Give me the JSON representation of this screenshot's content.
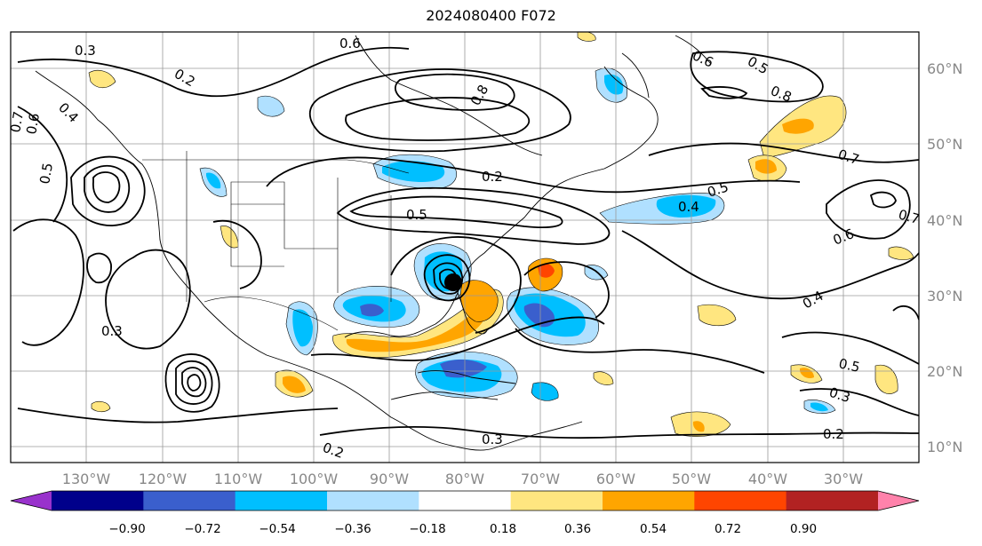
{
  "title": "2024080400 F072",
  "map": {
    "lon_labels": [
      "130°W",
      "120°W",
      "110°W",
      "100°W",
      "90°W",
      "80°W",
      "70°W",
      "60°W",
      "50°W",
      "40°W",
      "30°W"
    ],
    "lat_labels": [
      "60°N",
      "50°N",
      "40°N",
      "30°N",
      "20°N",
      "10°N"
    ],
    "contour_labels": [
      "0.3",
      "0.2",
      "0.6",
      "0.8",
      "0.6",
      "0.7",
      "0.5",
      "0.8",
      "0.2",
      "0.5",
      "0.4",
      "0.6",
      "0.7",
      "0.5",
      "0.4",
      "0.3",
      "0.5",
      "0.3",
      "0.2",
      "0.3",
      "0.2",
      "0.7",
      "0.6",
      "0.5",
      "0.4"
    ]
  },
  "colorbar": {
    "ticks": [
      "−0.90",
      "−0.72",
      "−0.54",
      "−0.36",
      "−0.18",
      "0.18",
      "0.36",
      "0.54",
      "0.72",
      "0.90"
    ],
    "colors": [
      "#9932cc",
      "#00008b",
      "#3a5fcd",
      "#00bfff",
      "#b0e0ff",
      "#ffffff",
      "#ffe680",
      "#ffa500",
      "#ff4500",
      "#b22222",
      "#ff82ab"
    ]
  },
  "colors": {
    "light_blue": "#b0e0ff",
    "blue": "#00bfff",
    "royal": "#3a5fcd",
    "yellow": "#ffe680",
    "orange": "#ffa500",
    "red_orange": "#ff4500"
  }
}
